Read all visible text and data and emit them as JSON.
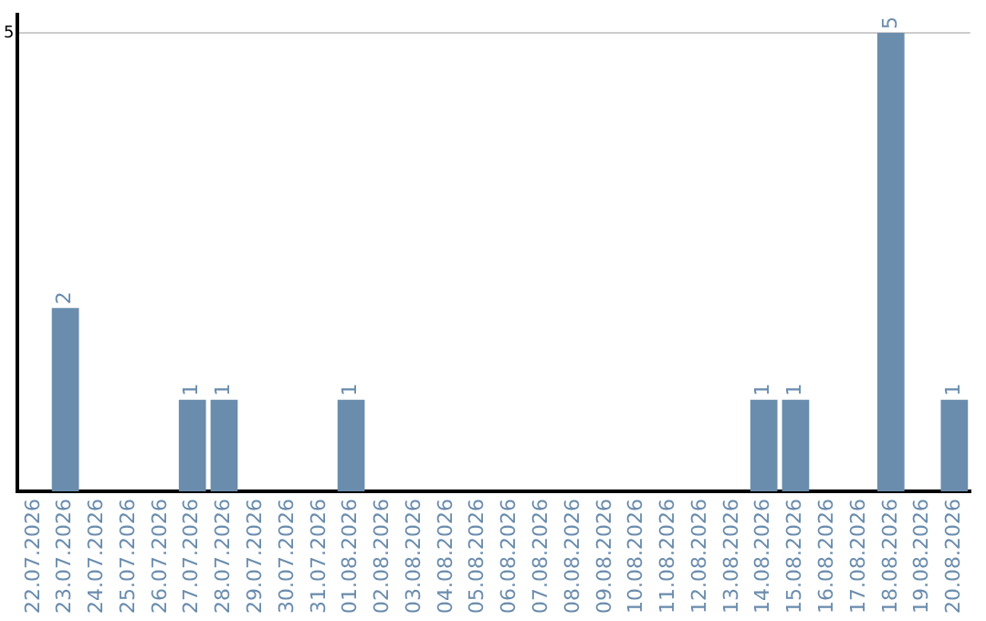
{
  "chart_data": {
    "type": "bar",
    "categories": [
      "22.07.2026",
      "23.07.2026",
      "24.07.2026",
      "25.07.2026",
      "26.07.2026",
      "27.07.2026",
      "28.07.2026",
      "29.07.2026",
      "30.07.2026",
      "31.07.2026",
      "01.08.2026",
      "02.08.2026",
      "03.08.2026",
      "04.08.2026",
      "05.08.2026",
      "06.08.2026",
      "07.08.2026",
      "08.08.2026",
      "09.08.2026",
      "10.08.2026",
      "11.08.2026",
      "12.08.2026",
      "13.08.2026",
      "14.08.2026",
      "15.08.2026",
      "16.08.2026",
      "17.08.2026",
      "18.08.2026",
      "19.08.2026",
      "20.08.2026"
    ],
    "values": [
      0,
      2,
      0,
      0,
      0,
      1,
      1,
      0,
      0,
      0,
      1,
      0,
      0,
      0,
      0,
      0,
      0,
      0,
      0,
      0,
      0,
      0,
      0,
      1,
      1,
      0,
      0,
      5,
      0,
      1
    ],
    "value_labels": [
      null,
      "2",
      null,
      null,
      null,
      "1",
      "1",
      null,
      null,
      null,
      "1",
      null,
      null,
      null,
      null,
      null,
      null,
      null,
      null,
      null,
      null,
      null,
      null,
      "1",
      "1",
      null,
      null,
      "5",
      null,
      "1"
    ],
    "color": "#6a8cad",
    "ylim": [
      0,
      5.2
    ],
    "yticks": [
      5
    ],
    "grid": "y",
    "legend": false
  }
}
